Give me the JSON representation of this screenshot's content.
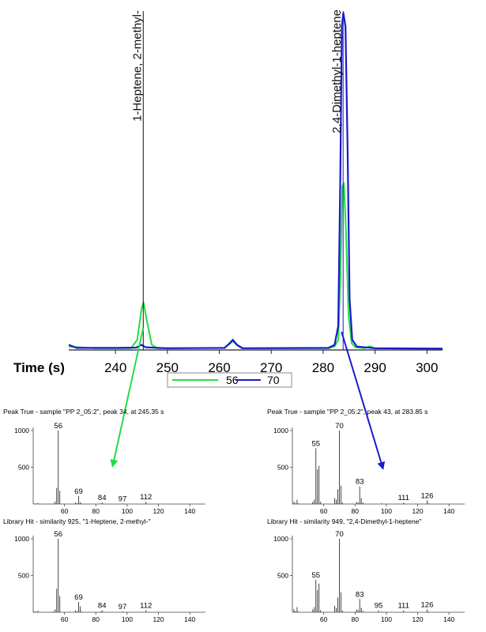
{
  "chromatogram": {
    "xlabel": "Time (s)",
    "x_ticks": [
      240,
      250,
      260,
      270,
      280,
      290,
      300
    ],
    "xlim": [
      231,
      303
    ],
    "ylim": [
      0,
      100
    ],
    "legend": [
      "56",
      "70"
    ],
    "series": [
      {
        "name": "56",
        "color": "#22dd44",
        "points": [
          [
            231,
            1
          ],
          [
            236,
            0.5
          ],
          [
            243,
            0.5
          ],
          [
            244.2,
            3
          ],
          [
            245,
            12
          ],
          [
            245.4,
            14
          ],
          [
            246,
            9
          ],
          [
            247,
            1.5
          ],
          [
            248,
            0.5
          ],
          [
            261,
            0.6
          ],
          [
            262,
            1.8
          ],
          [
            262.6,
            2.5
          ],
          [
            263.3,
            1.6
          ],
          [
            264.3,
            0.5
          ],
          [
            281,
            0.5
          ],
          [
            282.2,
            1
          ],
          [
            282.9,
            3
          ],
          [
            283.3,
            20
          ],
          [
            283.7,
            48
          ],
          [
            284,
            49
          ],
          [
            284.4,
            35
          ],
          [
            284.9,
            10
          ],
          [
            285.5,
            2
          ],
          [
            286.2,
            0.8
          ],
          [
            288,
            0.5
          ],
          [
            289,
            1.1
          ],
          [
            290,
            0.5
          ],
          [
            303,
            0.4
          ]
        ]
      },
      {
        "name": "70",
        "color": "#1a1acc",
        "points": [
          [
            231,
            1.5
          ],
          [
            232.5,
            0.6
          ],
          [
            240,
            0.6
          ],
          [
            244,
            0.7
          ],
          [
            245,
            1.5
          ],
          [
            245.8,
            0.8
          ],
          [
            250,
            0.5
          ],
          [
            261,
            0.6
          ],
          [
            262,
            2
          ],
          [
            262.6,
            3
          ],
          [
            263.4,
            1.5
          ],
          [
            264.5,
            0.5
          ],
          [
            281,
            0.6
          ],
          [
            282.2,
            1.5
          ],
          [
            282.9,
            7
          ],
          [
            283.3,
            50
          ],
          [
            283.6,
            95
          ],
          [
            283.9,
            99
          ],
          [
            284.3,
            95
          ],
          [
            284.7,
            60
          ],
          [
            285.1,
            15
          ],
          [
            285.6,
            3
          ],
          [
            286.5,
            1
          ],
          [
            290,
            0.5
          ],
          [
            303,
            0.4
          ]
        ]
      }
    ],
    "annotations": [
      {
        "label": "1-Heptene, 2-methyl-",
        "time": 245.35
      },
      {
        "label": "2,4-Dimethyl-1-heptene",
        "time": 283.85
      }
    ]
  },
  "mass_spectra": [
    {
      "title": "Peak True - sample \"PP 2_05:2\", peak 34, at 245.35 s",
      "xlim": [
        40,
        150
      ],
      "x_ticks": [
        60,
        80,
        100,
        120,
        140
      ],
      "ylim": [
        0,
        1000
      ],
      "y_ticks": [
        500,
        1000
      ],
      "peaks": [
        [
          41,
          8
        ],
        [
          42,
          3
        ],
        [
          43,
          15
        ],
        [
          44,
          4
        ],
        [
          45,
          2
        ],
        [
          53,
          6
        ],
        [
          54,
          35
        ],
        [
          55,
          220
        ],
        [
          56,
          1000
        ],
        [
          57,
          180
        ],
        [
          67,
          20
        ],
        [
          68,
          10
        ],
        [
          69,
          110
        ],
        [
          70,
          25
        ],
        [
          71,
          8
        ],
        [
          83,
          8
        ],
        [
          84,
          22
        ],
        [
          85,
          5
        ],
        [
          97,
          8
        ],
        [
          98,
          3
        ],
        [
          112,
          30
        ],
        [
          113,
          4
        ]
      ],
      "labels": [
        [
          56,
          "56"
        ],
        [
          69,
          "69"
        ],
        [
          84,
          "84"
        ],
        [
          97,
          "97"
        ],
        [
          112,
          "112"
        ]
      ]
    },
    {
      "title": "Library Hit - similarity 925, \"1-Heptene, 2-methyl-\"",
      "xlim": [
        40,
        150
      ],
      "x_ticks": [
        60,
        80,
        100,
        120,
        140
      ],
      "ylim": [
        0,
        1000
      ],
      "y_ticks": [
        500,
        1000
      ],
      "peaks": [
        [
          41,
          12
        ],
        [
          42,
          5
        ],
        [
          43,
          22
        ],
        [
          44,
          5
        ],
        [
          51,
          3
        ],
        [
          53,
          10
        ],
        [
          54,
          40
        ],
        [
          55,
          320
        ],
        [
          56,
          1000
        ],
        [
          57,
          220
        ],
        [
          67,
          25
        ],
        [
          68,
          12
        ],
        [
          69,
          140
        ],
        [
          70,
          80
        ],
        [
          71,
          10
        ],
        [
          83,
          10
        ],
        [
          84,
          28
        ],
        [
          85,
          5
        ],
        [
          97,
          10
        ],
        [
          98,
          3
        ],
        [
          112,
          28
        ],
        [
          113,
          4
        ]
      ],
      "labels": [
        [
          56,
          "56"
        ],
        [
          69,
          "69"
        ],
        [
          84,
          "84"
        ],
        [
          97,
          "97"
        ],
        [
          112,
          "112"
        ]
      ]
    },
    {
      "title": "Peak True - sample \"PP 2_05:2\", peak 43, at 283.85 s",
      "xlim": [
        40,
        150
      ],
      "x_ticks": [
        60,
        80,
        100,
        120,
        140
      ],
      "ylim": [
        0,
        1000
      ],
      "y_ticks": [
        500,
        1000
      ],
      "peaks": [
        [
          41,
          35
        ],
        [
          42,
          12
        ],
        [
          43,
          60
        ],
        [
          44,
          8
        ],
        [
          53,
          30
        ],
        [
          54,
          60
        ],
        [
          55,
          760
        ],
        [
          56,
          470
        ],
        [
          57,
          520
        ],
        [
          58,
          30
        ],
        [
          67,
          80
        ],
        [
          68,
          60
        ],
        [
          69,
          200
        ],
        [
          70,
          1000
        ],
        [
          71,
          250
        ],
        [
          72,
          20
        ],
        [
          81,
          30
        ],
        [
          82,
          20
        ],
        [
          83,
          240
        ],
        [
          84,
          80
        ],
        [
          85,
          20
        ],
        [
          97,
          10
        ],
        [
          111,
          20
        ],
        [
          112,
          5
        ],
        [
          126,
          50
        ],
        [
          127,
          8
        ]
      ],
      "labels": [
        [
          55,
          "55"
        ],
        [
          70,
          "70"
        ],
        [
          83,
          "83"
        ],
        [
          111,
          "111"
        ],
        [
          126,
          "126"
        ]
      ]
    },
    {
      "title": "Library Hit - similarity 949, \"2,4-Dimethyl-1-heptene\"",
      "xlim": [
        40,
        150
      ],
      "x_ticks": [
        60,
        80,
        100,
        120,
        140
      ],
      "ylim": [
        0,
        1000
      ],
      "y_ticks": [
        500,
        1000
      ],
      "peaks": [
        [
          41,
          40
        ],
        [
          42,
          15
        ],
        [
          43,
          70
        ],
        [
          44,
          10
        ],
        [
          53,
          40
        ],
        [
          54,
          70
        ],
        [
          55,
          440
        ],
        [
          56,
          300
        ],
        [
          57,
          390
        ],
        [
          58,
          30
        ],
        [
          67,
          90
        ],
        [
          68,
          60
        ],
        [
          69,
          200
        ],
        [
          70,
          1000
        ],
        [
          71,
          270
        ],
        [
          72,
          20
        ],
        [
          81,
          40
        ],
        [
          82,
          30
        ],
        [
          83,
          180
        ],
        [
          84,
          60
        ],
        [
          85,
          20
        ],
        [
          95,
          25
        ],
        [
          97,
          10
        ],
        [
          111,
          25
        ],
        [
          112,
          5
        ],
        [
          126,
          40
        ],
        [
          127,
          8
        ]
      ],
      "labels": [
        [
          55,
          "55"
        ],
        [
          70,
          "70"
        ],
        [
          83,
          "83"
        ],
        [
          95,
          "95"
        ],
        [
          111,
          "111"
        ],
        [
          126,
          "126"
        ]
      ]
    }
  ]
}
